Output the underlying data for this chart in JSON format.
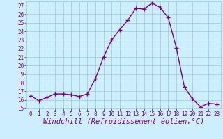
{
  "x": [
    0,
    1,
    2,
    3,
    4,
    5,
    6,
    7,
    8,
    9,
    10,
    11,
    12,
    13,
    14,
    15,
    16,
    17,
    18,
    19,
    20,
    21,
    22,
    23
  ],
  "y": [
    16.5,
    15.9,
    16.3,
    16.7,
    16.7,
    16.6,
    16.4,
    16.7,
    18.5,
    21.0,
    23.0,
    24.2,
    25.3,
    26.7,
    26.6,
    27.3,
    26.8,
    25.6,
    22.1,
    17.5,
    16.1,
    15.2,
    15.6,
    15.5
  ],
  "line_color": "#800080",
  "marker": "+",
  "marker_size": 4,
  "bg_color": "#cceeff",
  "grid_color": "#99cccc",
  "xlabel": "Windchill (Refroidissement éolien,°C)",
  "ylim": [
    15,
    27.5
  ],
  "xlim": [
    -0.5,
    23.5
  ],
  "yticks": [
    15,
    16,
    17,
    18,
    19,
    20,
    21,
    22,
    23,
    24,
    25,
    26,
    27
  ],
  "xticks": [
    0,
    1,
    2,
    3,
    4,
    5,
    6,
    7,
    8,
    9,
    10,
    11,
    12,
    13,
    14,
    15,
    16,
    17,
    18,
    19,
    20,
    21,
    22,
    23
  ],
  "tick_color": "#800080",
  "tick_fontsize": 5.5,
  "xlabel_fontsize": 7.5,
  "linewidth": 1.0,
  "markeredgewidth": 1.0
}
